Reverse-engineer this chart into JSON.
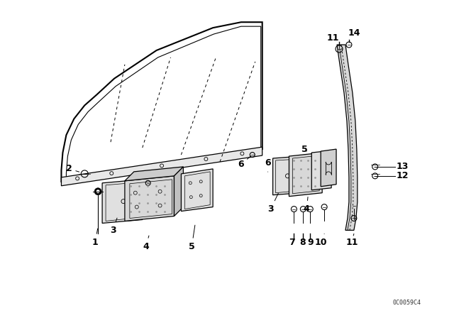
{
  "bg_color": "#ffffff",
  "line_color": "#000000",
  "diagram_id": "0C0059C4",
  "label_fontsize": 8,
  "small_fontsize": 7
}
